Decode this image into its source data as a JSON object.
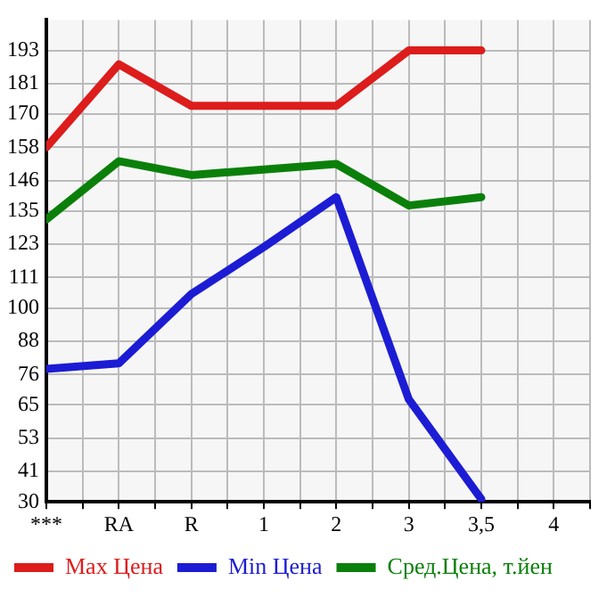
{
  "chart_data": {
    "type": "line",
    "categories": [
      "***",
      "RA",
      "R",
      "1",
      "2",
      "3",
      "3,5",
      "4"
    ],
    "series": [
      {
        "name": "Max Цена",
        "color": "#dd1c1c",
        "values": [
          158,
          188,
          173,
          173,
          173,
          193,
          193,
          null
        ]
      },
      {
        "name": "Min Цена",
        "color": "#1c1cd4",
        "values": [
          78,
          80,
          105,
          122,
          140,
          67,
          31,
          null
        ]
      },
      {
        "name": "Сред.Цена, т.йен",
        "color": "#0a800a",
        "values": [
          132,
          153,
          148,
          150,
          152,
          137,
          140,
          null
        ]
      }
    ],
    "ylim": [
      30,
      204
    ],
    "yticks": [
      30,
      41,
      53,
      65,
      76,
      88,
      100,
      111,
      123,
      135,
      146,
      158,
      170,
      181,
      193
    ],
    "grid": true,
    "legend": "bottom",
    "marker": "none",
    "line_style": "solid"
  }
}
